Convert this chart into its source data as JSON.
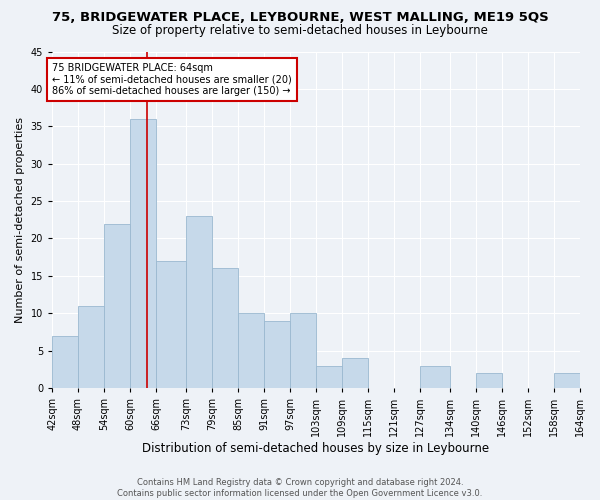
{
  "title": "75, BRIDGEWATER PLACE, LEYBOURNE, WEST MALLING, ME19 5QS",
  "subtitle": "Size of property relative to semi-detached houses in Leybourne",
  "xlabel": "Distribution of semi-detached houses by size in Leybourne",
  "ylabel": "Number of semi-detached properties",
  "footer": "Contains HM Land Registry data © Crown copyright and database right 2024.\nContains public sector information licensed under the Open Government Licence v3.0.",
  "bin_edges": [
    42,
    48,
    54,
    60,
    66,
    73,
    79,
    85,
    91,
    97,
    103,
    109,
    115,
    121,
    127,
    134,
    140,
    146,
    152,
    158,
    164
  ],
  "bin_labels": [
    "42sqm",
    "48sqm",
    "54sqm",
    "60sqm",
    "66sqm",
    "73sqm",
    "79sqm",
    "85sqm",
    "91sqm",
    "97sqm",
    "103sqm",
    "109sqm",
    "115sqm",
    "121sqm",
    "127sqm",
    "134sqm",
    "140sqm",
    "146sqm",
    "152sqm",
    "158sqm",
    "164sqm"
  ],
  "values": [
    7,
    11,
    22,
    36,
    17,
    23,
    16,
    10,
    9,
    10,
    3,
    4,
    0,
    0,
    3,
    0,
    2,
    0,
    0,
    2
  ],
  "bar_color": "#c6d9ea",
  "bar_edge_color": "#9ab8d0",
  "property_line_x": 64,
  "annotation_text": "75 BRIDGEWATER PLACE: 64sqm\n← 11% of semi-detached houses are smaller (20)\n86% of semi-detached houses are larger (150) →",
  "annotation_box_color": "#ffffff",
  "annotation_box_edge_color": "#cc0000",
  "vline_color": "#cc0000",
  "ylim": [
    0,
    45
  ],
  "yticks": [
    0,
    5,
    10,
    15,
    20,
    25,
    30,
    35,
    40,
    45
  ],
  "bg_color": "#eef2f7",
  "plot_bg_color": "#eef2f7",
  "title_fontsize": 9.5,
  "subtitle_fontsize": 8.5,
  "ylabel_fontsize": 8,
  "xlabel_fontsize": 8.5,
  "footer_fontsize": 6,
  "tick_fontsize": 7,
  "annotation_fontsize": 7
}
